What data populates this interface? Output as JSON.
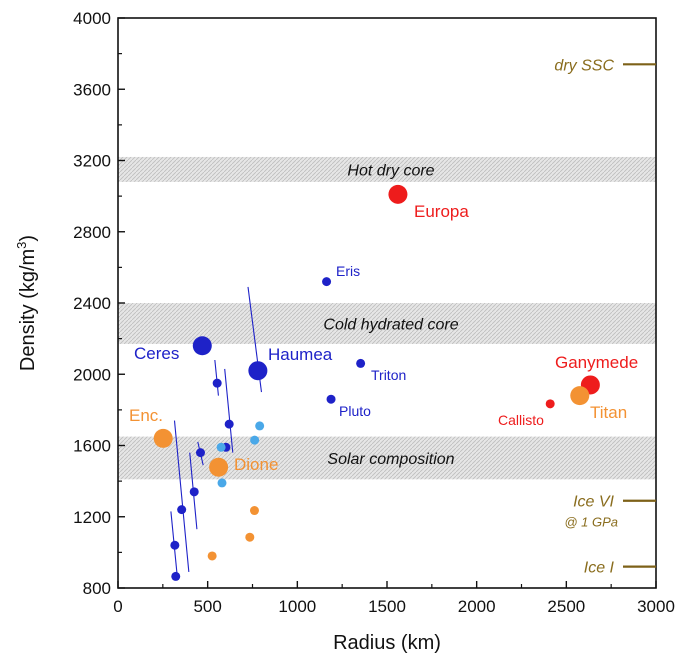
{
  "chart_data": {
    "type": "scatter",
    "xlabel": "Radius (km)",
    "ylabel": "Density (kg/m",
    "ylabel_sup": "3",
    "ylabel_end": ")",
    "xlim": [
      0,
      3000
    ],
    "ylim": [
      800,
      4000
    ],
    "xticks": [
      0,
      500,
      1000,
      1500,
      2000,
      2500,
      3000
    ],
    "yticks": [
      800,
      1200,
      1600,
      2000,
      2400,
      2800,
      3200,
      3600,
      4000
    ],
    "grid": false,
    "colors": {
      "red": "#ee1c1c",
      "blue": "#1e22c8",
      "lightblue": "#4aa8e8",
      "orange": "#f39233",
      "gold": "#7d6118",
      "band": "#d9d9d9"
    },
    "bands": [
      {
        "label": "Hot dry core",
        "y0": 3080,
        "y1": 3220
      },
      {
        "label": "Cold hydrated  core",
        "y0": 2170,
        "y1": 2400
      },
      {
        "label": "Solar composition",
        "y0": 1410,
        "y1": 1650
      }
    ],
    "references": [
      {
        "label": "dry SSC",
        "y": 3740
      },
      {
        "label": "Ice VI",
        "sublabel": "@ 1 GPa",
        "y": 1290
      },
      {
        "label": "Ice I",
        "y": 920
      }
    ],
    "points": [
      {
        "name": "Europa",
        "x": 1561,
        "y": 3010,
        "color": "red",
        "size": "large"
      },
      {
        "name": "Ganymede",
        "x": 2634,
        "y": 1940,
        "color": "red",
        "size": "large"
      },
      {
        "name": "Callisto",
        "x": 2410,
        "y": 1834,
        "color": "red",
        "size": "small"
      },
      {
        "name": "Titan",
        "x": 2575,
        "y": 1880,
        "color": "orange",
        "size": "large"
      },
      {
        "name": "Enc.",
        "x": 252,
        "y": 1640,
        "color": "orange",
        "size": "large"
      },
      {
        "name": "Dione",
        "x": 561,
        "y": 1478,
        "color": "orange",
        "size": "large"
      },
      {
        "name": "Eris",
        "x": 1163,
        "y": 2520,
        "color": "blue",
        "size": "small"
      },
      {
        "name": "Triton",
        "x": 1353,
        "y": 2061,
        "color": "blue",
        "size": "small"
      },
      {
        "name": "Pluto",
        "x": 1188,
        "y": 1860,
        "color": "blue",
        "size": "small"
      },
      {
        "name": "Ceres",
        "x": 470,
        "y": 2160,
        "color": "blue",
        "size": "large"
      },
      {
        "name": "Haumea",
        "x": 780,
        "y": 2020,
        "color": "blue",
        "size": "large"
      },
      {
        "name": "",
        "x": 553,
        "y": 1950,
        "color": "blue",
        "size": "small"
      },
      {
        "name": "",
        "x": 620,
        "y": 1720,
        "color": "blue",
        "size": "small"
      },
      {
        "name": "",
        "x": 602,
        "y": 1590,
        "color": "blue",
        "size": "small"
      },
      {
        "name": "",
        "x": 460,
        "y": 1560,
        "color": "blue",
        "size": "small"
      },
      {
        "name": "",
        "x": 425,
        "y": 1340,
        "color": "blue",
        "size": "small"
      },
      {
        "name": "",
        "x": 355,
        "y": 1240,
        "color": "blue",
        "size": "small"
      },
      {
        "name": "",
        "x": 317,
        "y": 1040,
        "color": "blue",
        "size": "small"
      },
      {
        "name": "",
        "x": 322,
        "y": 865,
        "color": "blue",
        "size": "small"
      },
      {
        "name": "",
        "x": 790,
        "y": 1710,
        "color": "lightblue",
        "size": "small"
      },
      {
        "name": "",
        "x": 762,
        "y": 1630,
        "color": "lightblue",
        "size": "small"
      },
      {
        "name": "",
        "x": 575,
        "y": 1590,
        "color": "lightblue",
        "size": "small"
      },
      {
        "name": "",
        "x": 580,
        "y": 1390,
        "color": "lightblue",
        "size": "small"
      },
      {
        "name": "",
        "x": 761,
        "y": 1235,
        "color": "orange",
        "size": "small"
      },
      {
        "name": "",
        "x": 735,
        "y": 1085,
        "color": "orange",
        "size": "small"
      },
      {
        "name": "",
        "x": 525,
        "y": 980,
        "color": "orange",
        "size": "small"
      }
    ],
    "error_lines": [
      {
        "x1": 725,
        "y1": 2490,
        "x2": 800,
        "y2": 1900
      },
      {
        "x1": 540,
        "y1": 2080,
        "x2": 560,
        "y2": 1880
      },
      {
        "x1": 595,
        "y1": 2030,
        "x2": 640,
        "y2": 1560
      },
      {
        "x1": 445,
        "y1": 1620,
        "x2": 475,
        "y2": 1490
      },
      {
        "x1": 400,
        "y1": 1560,
        "x2": 440,
        "y2": 1130
      },
      {
        "x1": 315,
        "y1": 1740,
        "x2": 395,
        "y2": 890
      },
      {
        "x1": 295,
        "y1": 1230,
        "x2": 330,
        "y2": 870
      }
    ]
  },
  "labels": {
    "europa": "Europa",
    "ganymede": "Ganymede",
    "callisto": "Callisto",
    "titan": "Titan",
    "enceladus": "Enc.",
    "dione": "Dione",
    "eris": "Eris",
    "triton": "Triton",
    "pluto": "Pluto",
    "ceres": "Ceres",
    "haumea": "Haumea"
  }
}
